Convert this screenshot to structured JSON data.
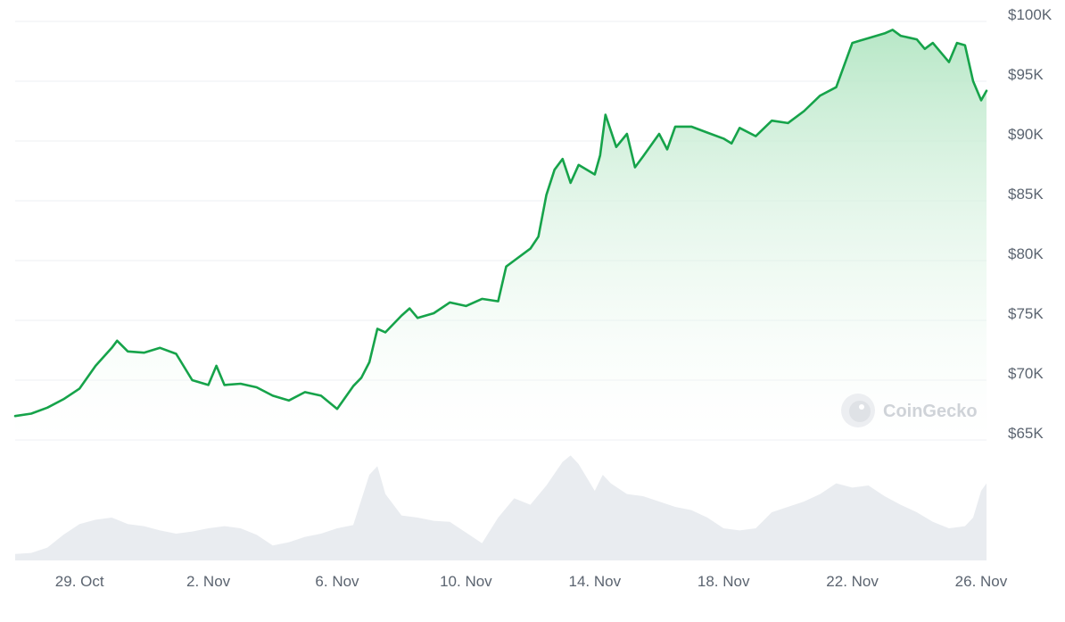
{
  "watermark": {
    "text": "CoinGecko"
  },
  "colors": {
    "line": "#16a34a",
    "area_top": "#b4e6c4",
    "area_bottom": "#ffffff",
    "volume": "#e9ecf0",
    "grid": "#eceff3",
    "tick_text": "#5b6470",
    "watermark": "#cfd3d8"
  },
  "chart_data": {
    "type": "area",
    "title": "",
    "xlabel": "",
    "ylabel": "",
    "x_ticks": [
      "29. Oct",
      "2. Nov",
      "6. Nov",
      "10. Nov",
      "14. Nov",
      "18. Nov",
      "22. Nov",
      "26. Nov"
    ],
    "y_ticks": [
      "$65K",
      "$70K",
      "$75K",
      "$80K",
      "$85K",
      "$90K",
      "$95K",
      "$100K"
    ],
    "y_tick_values": [
      65000,
      70000,
      75000,
      80000,
      85000,
      90000,
      95000,
      100000
    ],
    "ylim": [
      65000,
      100000
    ],
    "xlim": [
      "2024-10-27",
      "2024-11-26"
    ],
    "grid": true,
    "series": [
      {
        "values_unit": "USD",
        "points": [
          [
            "2024-10-27",
            67000
          ],
          [
            "2024-10-27 12:00",
            67200
          ],
          [
            "2024-10-28",
            67700
          ],
          [
            "2024-10-28 12:00",
            68400
          ],
          [
            "2024-10-29",
            69300
          ],
          [
            "2024-10-29 12:00",
            71200
          ],
          [
            "2024-10-30",
            72700
          ],
          [
            "2024-10-30 04:00",
            73300
          ],
          [
            "2024-10-30 12:00",
            72400
          ],
          [
            "2024-10-31",
            72300
          ],
          [
            "2024-10-31 12:00",
            72700
          ],
          [
            "2024-11-01",
            72200
          ],
          [
            "2024-11-01 12:00",
            70000
          ],
          [
            "2024-11-02",
            69600
          ],
          [
            "2024-11-02 06:00",
            71200
          ],
          [
            "2024-11-02 12:00",
            69600
          ],
          [
            "2024-11-03",
            69700
          ],
          [
            "2024-11-03 12:00",
            69400
          ],
          [
            "2024-11-04",
            68700
          ],
          [
            "2024-11-04 12:00",
            68300
          ],
          [
            "2024-11-05",
            69000
          ],
          [
            "2024-11-05 12:00",
            68700
          ],
          [
            "2024-11-06",
            67600
          ],
          [
            "2024-11-06 12:00",
            69500
          ],
          [
            "2024-11-06 18:00",
            70200
          ],
          [
            "2024-11-07",
            71500
          ],
          [
            "2024-11-07 06:00",
            74300
          ],
          [
            "2024-11-07 12:00",
            74000
          ],
          [
            "2024-11-08",
            75400
          ],
          [
            "2024-11-08 06:00",
            76000
          ],
          [
            "2024-11-08 12:00",
            75200
          ],
          [
            "2024-11-09",
            75600
          ],
          [
            "2024-11-09 12:00",
            76500
          ],
          [
            "2024-11-10",
            76200
          ],
          [
            "2024-11-10 12:00",
            76800
          ],
          [
            "2024-11-11",
            76600
          ],
          [
            "2024-11-11 06:00",
            79500
          ],
          [
            "2024-11-11 12:00",
            80000
          ],
          [
            "2024-11-12",
            81000
          ],
          [
            "2024-11-12 06:00",
            82000
          ],
          [
            "2024-11-12 12:00",
            85500
          ],
          [
            "2024-11-12 18:00",
            87600
          ],
          [
            "2024-11-13",
            88500
          ],
          [
            "2024-11-13 06:00",
            86500
          ],
          [
            "2024-11-13 12:00",
            88000
          ],
          [
            "2024-11-14",
            87200
          ],
          [
            "2024-11-14 04:00",
            88800
          ],
          [
            "2024-11-14 08:00",
            92200
          ],
          [
            "2024-11-14 16:00",
            89500
          ],
          [
            "2024-11-15",
            90600
          ],
          [
            "2024-11-15 06:00",
            87800
          ],
          [
            "2024-11-15 12:00",
            88700
          ],
          [
            "2024-11-16",
            90600
          ],
          [
            "2024-11-16 06:00",
            89300
          ],
          [
            "2024-11-16 12:00",
            91200
          ],
          [
            "2024-11-17",
            91200
          ],
          [
            "2024-11-17 12:00",
            90700
          ],
          [
            "2024-11-18",
            90200
          ],
          [
            "2024-11-18 06:00",
            89800
          ],
          [
            "2024-11-18 12:00",
            91100
          ],
          [
            "2024-11-19",
            90400
          ],
          [
            "2024-11-19 12:00",
            91700
          ],
          [
            "2024-11-20",
            91500
          ],
          [
            "2024-11-20 12:00",
            92500
          ],
          [
            "2024-11-21",
            93800
          ],
          [
            "2024-11-21 12:00",
            94500
          ],
          [
            "2024-11-22",
            98200
          ],
          [
            "2024-11-22 06:00",
            98400
          ],
          [
            "2024-11-22 12:00",
            98600
          ],
          [
            "2024-11-23",
            99000
          ],
          [
            "2024-11-23 06:00",
            99300
          ],
          [
            "2024-11-23 12:00",
            98800
          ],
          [
            "2024-11-24",
            98500
          ],
          [
            "2024-11-24 06:00",
            97700
          ],
          [
            "2024-11-24 12:00",
            98200
          ],
          [
            "2024-11-25",
            96600
          ],
          [
            "2024-11-25 06:00",
            98200
          ],
          [
            "2024-11-25 12:00",
            98000
          ],
          [
            "2024-11-25 18:00",
            95000
          ],
          [
            "2024-11-26",
            93400
          ],
          [
            "2024-11-26 04:00",
            94200
          ]
        ]
      }
    ],
    "volume_series": {
      "values_unit": "relative",
      "points": [
        [
          "2024-10-27",
          6
        ],
        [
          "2024-10-27 12:00",
          7
        ],
        [
          "2024-10-28",
          12
        ],
        [
          "2024-10-28 12:00",
          24
        ],
        [
          "2024-10-29",
          34
        ],
        [
          "2024-10-29 12:00",
          38
        ],
        [
          "2024-10-30",
          40
        ],
        [
          "2024-10-30 12:00",
          34
        ],
        [
          "2024-10-31",
          32
        ],
        [
          "2024-10-31 12:00",
          28
        ],
        [
          "2024-11-01",
          25
        ],
        [
          "2024-11-01 12:00",
          27
        ],
        [
          "2024-11-02",
          30
        ],
        [
          "2024-11-02 12:00",
          32
        ],
        [
          "2024-11-03",
          30
        ],
        [
          "2024-11-03 12:00",
          24
        ],
        [
          "2024-11-04",
          14
        ],
        [
          "2024-11-04 12:00",
          17
        ],
        [
          "2024-11-05",
          22
        ],
        [
          "2024-11-05 12:00",
          25
        ],
        [
          "2024-11-06",
          30
        ],
        [
          "2024-11-06 12:00",
          33
        ],
        [
          "2024-11-07",
          80
        ],
        [
          "2024-11-07 06:00",
          88
        ],
        [
          "2024-11-07 12:00",
          62
        ],
        [
          "2024-11-08",
          42
        ],
        [
          "2024-11-08 12:00",
          40
        ],
        [
          "2024-11-09",
          37
        ],
        [
          "2024-11-09 12:00",
          36
        ],
        [
          "2024-11-10",
          26
        ],
        [
          "2024-11-10 12:00",
          16
        ],
        [
          "2024-11-11",
          40
        ],
        [
          "2024-11-11 12:00",
          58
        ],
        [
          "2024-11-12",
          52
        ],
        [
          "2024-11-12 12:00",
          70
        ],
        [
          "2024-11-13",
          92
        ],
        [
          "2024-11-13 06:00",
          98
        ],
        [
          "2024-11-13 12:00",
          90
        ],
        [
          "2024-11-14",
          65
        ],
        [
          "2024-11-14 06:00",
          80
        ],
        [
          "2024-11-14 12:00",
          72
        ],
        [
          "2024-11-15",
          62
        ],
        [
          "2024-11-15 12:00",
          60
        ],
        [
          "2024-11-16",
          55
        ],
        [
          "2024-11-16 12:00",
          50
        ],
        [
          "2024-11-17",
          47
        ],
        [
          "2024-11-17 12:00",
          40
        ],
        [
          "2024-11-18",
          30
        ],
        [
          "2024-11-18 12:00",
          28
        ],
        [
          "2024-11-19",
          30
        ],
        [
          "2024-11-19 12:00",
          45
        ],
        [
          "2024-11-20",
          50
        ],
        [
          "2024-11-20 12:00",
          55
        ],
        [
          "2024-11-21",
          62
        ],
        [
          "2024-11-21 12:00",
          72
        ],
        [
          "2024-11-22",
          68
        ],
        [
          "2024-11-22 12:00",
          70
        ],
        [
          "2024-11-23",
          60
        ],
        [
          "2024-11-23 12:00",
          52
        ],
        [
          "2024-11-24",
          45
        ],
        [
          "2024-11-24 12:00",
          36
        ],
        [
          "2024-11-25",
          30
        ],
        [
          "2024-11-25 12:00",
          32
        ],
        [
          "2024-11-25 18:00",
          40
        ],
        [
          "2024-11-26",
          65
        ],
        [
          "2024-11-26 04:00",
          72
        ]
      ]
    }
  }
}
